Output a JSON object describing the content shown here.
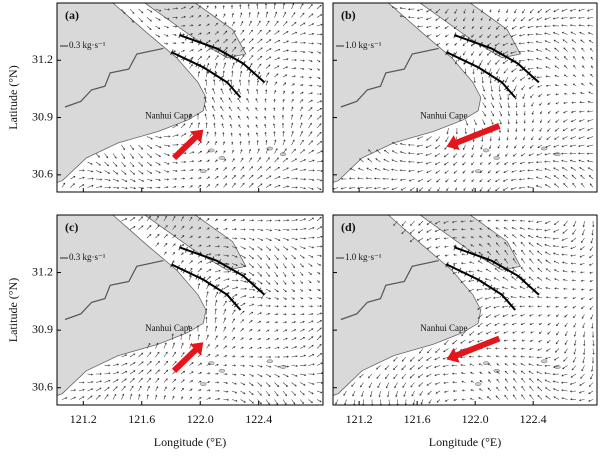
{
  "chart_data": [
    {
      "type": "vector",
      "panel": "(a)",
      "scale_label": "0.3 kg·s⁻¹",
      "annotation": "Nanhui Cape",
      "xlim": [
        121.02,
        122.84
      ],
      "ylim": [
        30.51,
        31.5
      ],
      "xticks": [
        121.2,
        121.6,
        {
          "value": 122,
          "label": "122.0"
        },
        122.4
      ],
      "yticks": [
        31.2,
        30.9,
        30.6
      ],
      "ylabel": "Latitude (°N)",
      "current": "north-east",
      "sections": true
    },
    {
      "type": "vector",
      "panel": "(b)",
      "scale_label": "1.0 kg·s⁻¹",
      "annotation": "Nanhui Cape",
      "xlim": [
        121.02,
        122.84
      ],
      "ylim": [
        30.51,
        31.5
      ],
      "xticks": [
        121.2,
        121.6,
        {
          "value": 122,
          "label": "122.0"
        },
        122.4
      ],
      "yticks": [
        31.2,
        30.9,
        30.6
      ],
      "current": "south-west",
      "sections": true
    },
    {
      "type": "vector",
      "panel": "(c)",
      "scale_label": "0.3 kg·s⁻¹",
      "annotation": "Nanhui Cape",
      "xlim": [
        121.02,
        122.84
      ],
      "ylim": [
        30.51,
        31.5
      ],
      "xticks": [
        121.2,
        121.6,
        {
          "value": 122,
          "label": "122.0"
        },
        122.4
      ],
      "yticks": [
        31.2,
        30.9,
        30.6
      ],
      "xlabel": "Longitude (°E)",
      "ylabel": "Latitude (°N)",
      "current": "north-east",
      "sections": true
    },
    {
      "type": "vector",
      "panel": "(d)",
      "scale_label": "1.0 kg·s⁻¹",
      "annotation": "Nanhui Cape",
      "xlim": [
        121.02,
        122.84
      ],
      "ylim": [
        30.51,
        31.5
      ],
      "xticks": [
        121.2,
        121.6,
        {
          "value": 122,
          "label": "122.0"
        },
        122.4
      ],
      "yticks": [
        31.2,
        30.9,
        30.6
      ],
      "xlabel": "Longitude (°E)",
      "current": "south-west",
      "sections": true
    }
  ]
}
